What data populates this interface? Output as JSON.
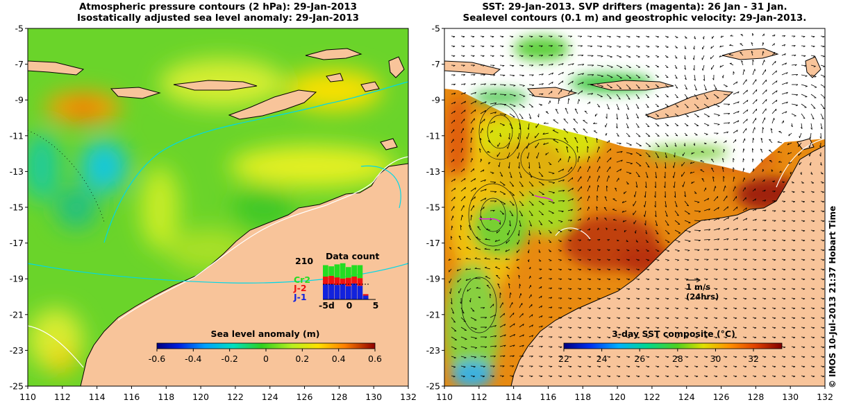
{
  "left_panel": {
    "title_line1": "Atmospheric pressure contours (2 hPa): 29-Jan-2013",
    "title_line2": "Isostatically adjusted sea level anomaly: 29-Jan-2013",
    "colorbar": {
      "label": "Sea level anomaly (m)",
      "ticks": [
        "-0.6",
        "-0.4",
        "-0.2",
        "0",
        "0.2",
        "0.4",
        "0.6"
      ],
      "range": [
        -0.6,
        0.6
      ]
    },
    "data_count": {
      "title": "Data count",
      "max_label": "210",
      "series_labels": [
        "Cr2",
        "J-2",
        "J-1"
      ],
      "series_colors": [
        "#22dd22",
        "#ee1111",
        "#1122dd"
      ],
      "x_ticks": [
        "-5d",
        "0",
        "5"
      ],
      "bars": [
        {
          "j1": 0.4,
          "j2": 0.2,
          "cr2": 0.3
        },
        {
          "j1": 0.4,
          "j2": 0.22,
          "cr2": 0.25
        },
        {
          "j1": 0.38,
          "j2": 0.2,
          "cr2": 0.34
        },
        {
          "j1": 0.4,
          "j2": 0.15,
          "cr2": 0.4
        },
        {
          "j1": 0.35,
          "j2": 0.22,
          "cr2": 0.28
        },
        {
          "j1": 0.42,
          "j2": 0.18,
          "cr2": 0.3
        },
        {
          "j1": 0.36,
          "j2": 0.2,
          "cr2": 0.34
        },
        {
          "j1": 0.1,
          "j2": 0.04,
          "cr2": 0.0
        }
      ]
    }
  },
  "right_panel": {
    "title_line1": "SST: 29-Jan-2013. SVP drifters (magenta): 26 Jan - 31 Jan.",
    "title_line2": "Sealevel contours (0.1 m) and geostrophic velocity: 29-Jan-2013.",
    "colorbar": {
      "label": "3-day SST composite (°C)",
      "ticks": [
        "22",
        "24",
        "26",
        "28",
        "30",
        "32"
      ],
      "range": [
        22,
        33.5
      ]
    },
    "scale_arrow": {
      "label_line1": "1 m/s",
      "label_line2": "(24hrs)"
    }
  },
  "axes": {
    "lon_ticks": [
      "110",
      "112",
      "114",
      "116",
      "118",
      "120",
      "122",
      "124",
      "126",
      "128",
      "130",
      "132"
    ],
    "lat_ticks": [
      "-5",
      "-7",
      "-9",
      "-11",
      "-13",
      "-15",
      "-17",
      "-19",
      "-21",
      "-23",
      "-25"
    ],
    "lon_range": [
      110,
      132
    ],
    "lat_range": [
      -25,
      -5
    ]
  },
  "credit": "© IMOS 10-Jul-2013 21:37 Hobart Time",
  "colors": {
    "land": "#f8c49a",
    "coast": "#000000",
    "isobath": "#ffffff",
    "cyan_contour": "#00d8e8",
    "frame": "#000000",
    "cloud": "#ffffff"
  }
}
